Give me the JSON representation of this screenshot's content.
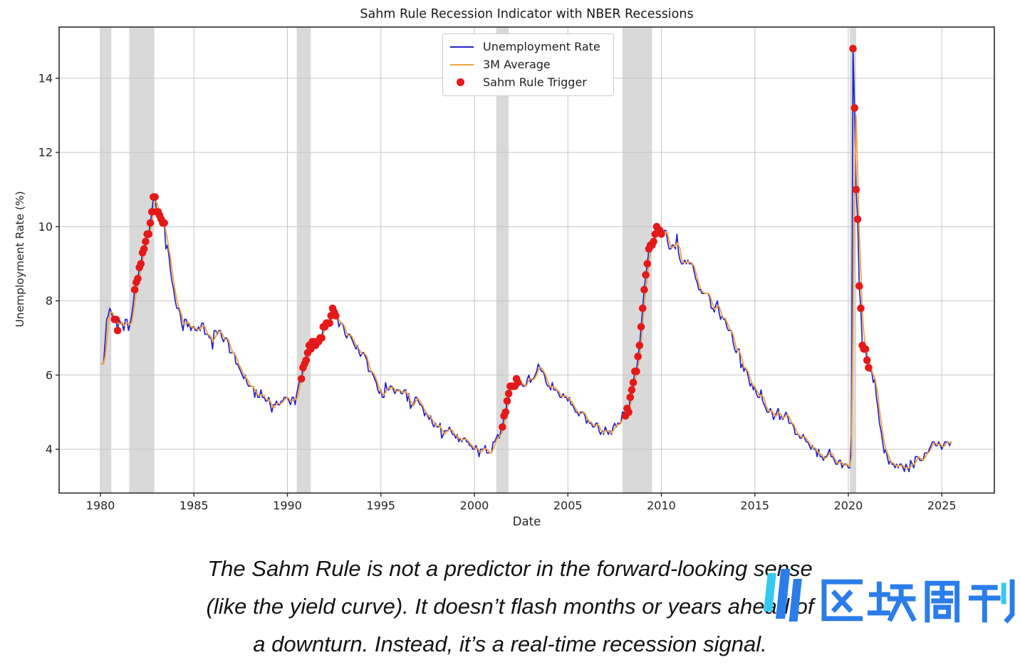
{
  "figure": {
    "title": "Sahm Rule Recession Indicator with NBER Recessions",
    "xlabel": "Date",
    "ylabel": "Unemployment Rate (%)",
    "legend": {
      "items": [
        {
          "label": "Unemployment Rate",
          "swatch": "line",
          "color": "#2222cf"
        },
        {
          "label": "3M Average",
          "swatch": "line",
          "color": "#f2a33c"
        },
        {
          "label": "Sahm Rule Trigger",
          "swatch": "dot",
          "color": "#e51919"
        }
      ]
    }
  },
  "caption": {
    "lines": [
      "The Sahm Rule is not a predictor in the forward-looking sense",
      "(like the yield curve). It doesn’t flash months or years ahead of",
      "a downturn. Instead, it’s a real-time recession signal."
    ]
  },
  "watermark": {
    "text": "区块周刊",
    "icon": "three-bars-logo",
    "color_primary": "#2b7de9",
    "color_accent": "#35c8f0"
  },
  "colors": {
    "line_blue": "#2222cf",
    "line_orange": "#f2a33c",
    "trigger_red": "#e51919",
    "recession_band": "#d9d9d9",
    "grid": "#c6c6c6",
    "spine": "#2b2b2b",
    "tick_label": "#262626"
  },
  "chart_data": {
    "type": "line",
    "title": "Sahm Rule Recession Indicator with NBER Recessions",
    "xlabel": "Date",
    "ylabel": "Unemployment Rate (%)",
    "x_unit": "decimal years, monthly points from 1980-01 to 2025-07",
    "x_start_year": 1980,
    "x_step_months": 1,
    "xlim": [
      1977.79,
      2027.81
    ],
    "ylim": [
      2.82,
      15.38
    ],
    "xticks": [
      1980,
      1985,
      1990,
      1995,
      2000,
      2005,
      2010,
      2015,
      2020,
      2025
    ],
    "yticks": [
      4,
      6,
      8,
      10,
      12,
      14
    ],
    "grid": true,
    "legend_position": "upper center",
    "series": [
      {
        "name": "Unemployment Rate",
        "color": "#2222cf",
        "values": [
          6.3,
          6.3,
          6.3,
          6.9,
          7.5,
          7.6,
          7.8,
          7.7,
          7.5,
          7.5,
          7.5,
          7.2,
          7.5,
          7.4,
          7.4,
          7.2,
          7.5,
          7.5,
          7.2,
          7.4,
          7.6,
          7.9,
          8.3,
          8.5,
          8.6,
          8.9,
          9.0,
          9.3,
          9.4,
          9.6,
          9.8,
          9.8,
          10.1,
          10.4,
          10.8,
          10.8,
          10.4,
          10.4,
          10.3,
          10.2,
          10.1,
          10.1,
          9.4,
          9.5,
          9.2,
          8.8,
          8.5,
          8.3,
          8.0,
          7.8,
          7.8,
          7.7,
          7.4,
          7.2,
          7.5,
          7.5,
          7.3,
          7.4,
          7.2,
          7.3,
          7.3,
          7.2,
          7.2,
          7.3,
          7.2,
          7.4,
          7.4,
          7.1,
          7.1,
          7.1,
          7.0,
          7.0,
          6.7,
          7.2,
          7.2,
          7.1,
          7.2,
          7.2,
          7.0,
          6.9,
          7.0,
          7.0,
          6.9,
          6.6,
          6.6,
          6.6,
          6.6,
          6.3,
          6.3,
          6.2,
          6.1,
          6.0,
          5.9,
          6.0,
          5.8,
          5.7,
          5.7,
          5.7,
          5.7,
          5.4,
          5.6,
          5.4,
          5.4,
          5.6,
          5.4,
          5.4,
          5.3,
          5.3,
          5.4,
          5.2,
          5.0,
          5.2,
          5.2,
          5.3,
          5.2,
          5.2,
          5.3,
          5.3,
          5.4,
          5.4,
          5.4,
          5.3,
          5.2,
          5.4,
          5.4,
          5.2,
          5.5,
          5.7,
          5.9,
          5.9,
          6.2,
          6.3,
          6.4,
          6.6,
          6.8,
          6.7,
          6.9,
          6.9,
          6.8,
          6.9,
          6.9,
          7.0,
          7.0,
          7.3,
          7.3,
          7.4,
          7.4,
          7.4,
          7.6,
          7.8,
          7.7,
          7.6,
          7.6,
          7.3,
          7.4,
          7.4,
          7.3,
          7.1,
          7.0,
          7.1,
          7.1,
          7.0,
          6.9,
          6.8,
          6.7,
          6.8,
          6.6,
          6.5,
          6.6,
          6.6,
          6.5,
          6.4,
          6.1,
          6.1,
          6.1,
          6.0,
          5.9,
          5.8,
          5.6,
          5.5,
          5.6,
          5.4,
          5.4,
          5.8,
          5.6,
          5.6,
          5.7,
          5.7,
          5.6,
          5.5,
          5.6,
          5.6,
          5.6,
          5.5,
          5.5,
          5.6,
          5.6,
          5.3,
          5.5,
          5.1,
          5.2,
          5.2,
          5.4,
          5.4,
          5.3,
          5.2,
          5.2,
          5.1,
          4.9,
          5.0,
          4.9,
          4.8,
          4.9,
          4.7,
          4.6,
          4.7,
          4.6,
          4.6,
          4.7,
          4.3,
          4.4,
          4.5,
          4.5,
          4.5,
          4.6,
          4.5,
          4.4,
          4.4,
          4.3,
          4.4,
          4.2,
          4.3,
          4.2,
          4.3,
          4.3,
          4.2,
          4.2,
          4.1,
          4.1,
          4.0,
          4.0,
          4.1,
          4.0,
          3.8,
          4.0,
          4.0,
          4.0,
          4.1,
          3.9,
          3.9,
          3.9,
          3.9,
          4.2,
          4.2,
          4.3,
          4.4,
          4.3,
          4.5,
          4.6,
          4.9,
          5.0,
          5.3,
          5.5,
          5.7,
          5.7,
          5.7,
          5.7,
          5.9,
          5.8,
          5.8,
          5.8,
          5.7,
          5.7,
          5.7,
          5.9,
          6.0,
          5.8,
          5.9,
          5.9,
          6.0,
          6.1,
          6.3,
          6.2,
          6.1,
          6.1,
          6.0,
          5.8,
          5.7,
          5.7,
          5.6,
          5.8,
          5.6,
          5.6,
          5.6,
          5.5,
          5.4,
          5.4,
          5.5,
          5.4,
          5.4,
          5.3,
          5.4,
          5.2,
          5.2,
          5.1,
          5.0,
          5.0,
          4.9,
          5.0,
          5.0,
          5.0,
          4.9,
          4.7,
          4.8,
          4.7,
          4.7,
          4.6,
          4.6,
          4.7,
          4.7,
          4.5,
          4.4,
          4.5,
          4.4,
          4.6,
          4.5,
          4.4,
          4.5,
          4.4,
          4.6,
          4.7,
          4.6,
          4.7,
          4.7,
          4.7,
          5.0,
          5.0,
          4.9,
          5.1,
          5.0,
          5.4,
          5.6,
          5.8,
          6.1,
          6.1,
          6.5,
          6.8,
          7.3,
          7.8,
          8.3,
          8.7,
          9.0,
          9.4,
          9.5,
          9.5,
          9.6,
          9.8,
          10.0,
          9.9,
          9.9,
          9.8,
          9.8,
          9.9,
          9.9,
          9.6,
          9.4,
          9.4,
          9.5,
          9.5,
          9.4,
          9.8,
          9.3,
          9.1,
          9.0,
          9.0,
          9.1,
          9.0,
          9.1,
          9.0,
          9.0,
          9.0,
          8.8,
          8.6,
          8.5,
          8.3,
          8.3,
          8.2,
          8.2,
          8.2,
          8.2,
          8.2,
          8.1,
          7.8,
          7.8,
          7.7,
          7.9,
          8.0,
          7.7,
          7.5,
          7.6,
          7.5,
          7.5,
          7.3,
          7.2,
          7.2,
          7.2,
          6.9,
          6.7,
          6.6,
          6.7,
          6.7,
          6.2,
          6.3,
          6.1,
          6.2,
          6.1,
          5.9,
          5.7,
          5.8,
          5.6,
          5.7,
          5.5,
          5.4,
          5.4,
          5.6,
          5.3,
          5.2,
          5.1,
          5.0,
          5.0,
          5.1,
          5.0,
          4.8,
          4.9,
          5.0,
          5.1,
          4.8,
          4.9,
          4.8,
          4.9,
          5.0,
          4.9,
          4.7,
          4.7,
          4.7,
          4.6,
          4.4,
          4.4,
          4.4,
          4.3,
          4.3,
          4.4,
          4.3,
          4.2,
          4.2,
          4.1,
          4.0,
          4.1,
          4.0,
          4.0,
          3.8,
          4.0,
          3.8,
          3.8,
          3.7,
          3.8,
          3.8,
          3.9,
          4.0,
          3.8,
          3.8,
          3.7,
          3.6,
          3.6,
          3.7,
          3.7,
          3.5,
          3.6,
          3.6,
          3.6,
          3.5,
          3.5,
          4.4,
          14.8,
          13.2,
          11.0,
          10.2,
          8.4,
          7.8,
          6.8,
          6.7,
          6.7,
          6.4,
          6.2,
          6.1,
          6.1,
          5.8,
          5.9,
          5.4,
          5.1,
          4.7,
          4.5,
          4.2,
          3.9,
          4.0,
          3.8,
          3.6,
          3.7,
          3.6,
          3.6,
          3.5,
          3.6,
          3.5,
          3.6,
          3.6,
          3.5,
          3.4,
          3.6,
          3.5,
          3.4,
          3.7,
          3.6,
          3.5,
          3.8,
          3.8,
          3.8,
          3.7,
          3.7,
          3.7,
          3.9,
          3.9,
          3.9,
          4.0,
          4.1,
          4.2,
          4.2,
          4.1,
          4.1,
          4.2,
          4.1,
          4.0,
          4.1,
          4.2,
          4.2,
          4.2,
          4.1,
          4.2
        ]
      },
      {
        "name": "3M Average",
        "color": "#f2a33c",
        "derived_from": "Unemployment Rate",
        "transform": "trailing 3-month mean"
      }
    ],
    "trigger_points": {
      "name": "Sahm Rule Trigger",
      "color": "#e51919",
      "month_index_ranges": [
        [
          9,
          11
        ],
        [
          22,
          41
        ],
        [
          129,
          151
        ],
        [
          258,
          268
        ],
        [
          337,
          360
        ],
        [
          483,
          493
        ]
      ]
    },
    "recession_bands": [
      [
        1980.0,
        1980.58
      ],
      [
        1981.54,
        1982.88
      ],
      [
        1990.5,
        1991.25
      ],
      [
        2001.17,
        2001.83
      ],
      [
        2007.92,
        2009.5
      ],
      [
        2020.08,
        2020.42
      ]
    ]
  }
}
